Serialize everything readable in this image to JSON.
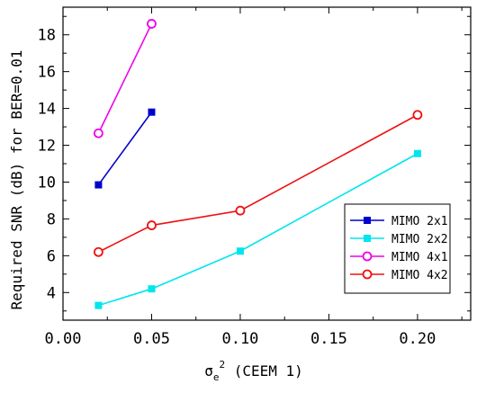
{
  "chart_data": {
    "type": "line",
    "xlabel": {
      "base": "σ",
      "sub": "e",
      "sup": "2",
      "rest": " (CEEM 1)"
    },
    "ylabel": "Required SNR (dB) for BER=0.01",
    "xlim": [
      0,
      0.23
    ],
    "ylim": [
      2.5,
      19.5
    ],
    "x_ticks": [
      "0.00",
      "0.05",
      "0.10",
      "0.15",
      "0.20"
    ],
    "y_ticks": [
      "4",
      "6",
      "8",
      "10",
      "12",
      "14",
      "16",
      "18"
    ],
    "grid": false,
    "legend_position": "bottom-right",
    "series": [
      {
        "name": "MIMO 2x1",
        "color": "#0000cc",
        "marker": "filled-square",
        "x": [
          0.02,
          0.05
        ],
        "y": [
          9.85,
          13.8
        ]
      },
      {
        "name": "MIMO 2x2",
        "color": "#00e5ee",
        "marker": "filled-square",
        "x": [
          0.02,
          0.05,
          0.1,
          0.2
        ],
        "y": [
          3.3,
          4.2,
          6.25,
          11.55
        ]
      },
      {
        "name": "MIMO 4x1",
        "color": "#ee00ee",
        "marker": "open-circle",
        "x": [
          0.02,
          0.05
        ],
        "y": [
          12.65,
          18.6
        ]
      },
      {
        "name": "MIMO 4x2",
        "color": "#ee1111",
        "marker": "open-circle",
        "x": [
          0.02,
          0.05,
          0.1,
          0.2
        ],
        "y": [
          6.2,
          7.65,
          8.45,
          13.65
        ]
      }
    ]
  }
}
